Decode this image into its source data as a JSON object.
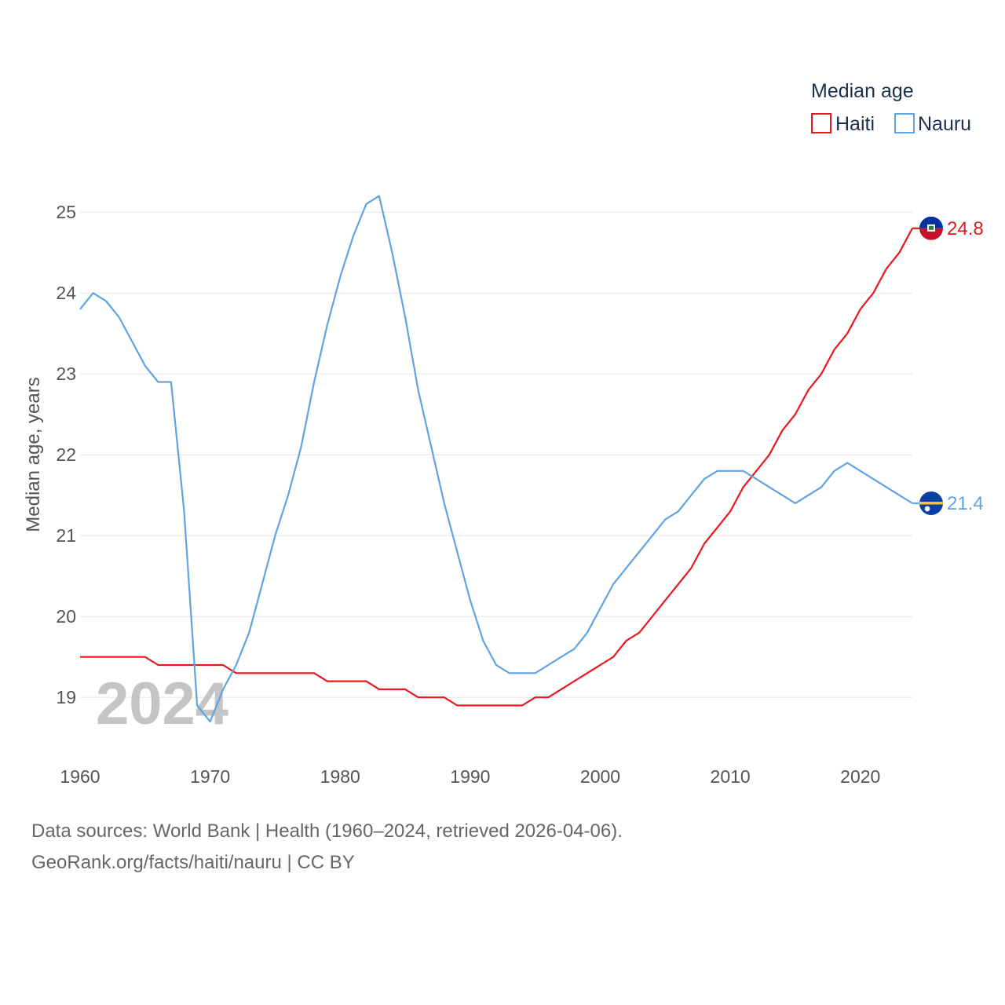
{
  "chart_data": {
    "type": "line",
    "legend_title": "Median age",
    "ylabel": "Median age, years",
    "xlabel": "",
    "watermark_year": "2024",
    "ylim": [
      18.4,
      25.4
    ],
    "xlim": [
      1960,
      2024
    ],
    "yticks": [
      19,
      20,
      21,
      22,
      23,
      24,
      25
    ],
    "xticks": [
      1960,
      1970,
      1980,
      1990,
      2000,
      2010,
      2020
    ],
    "x": [
      1960,
      1961,
      1962,
      1963,
      1964,
      1965,
      1966,
      1967,
      1968,
      1969,
      1970,
      1971,
      1972,
      1973,
      1974,
      1975,
      1976,
      1977,
      1978,
      1979,
      1980,
      1981,
      1982,
      1983,
      1984,
      1985,
      1986,
      1987,
      1988,
      1989,
      1990,
      1991,
      1992,
      1993,
      1994,
      1995,
      1996,
      1997,
      1998,
      1999,
      2000,
      2001,
      2002,
      2003,
      2004,
      2005,
      2006,
      2007,
      2008,
      2009,
      2010,
      2011,
      2012,
      2013,
      2014,
      2015,
      2016,
      2017,
      2018,
      2019,
      2020,
      2021,
      2022,
      2023,
      2024
    ],
    "series": [
      {
        "name": "Haiti",
        "color": "#e8181e",
        "flag": "haiti-flag",
        "end_label": "24.8",
        "values": [
          19.5,
          19.5,
          19.5,
          19.5,
          19.5,
          19.5,
          19.4,
          19.4,
          19.4,
          19.4,
          19.4,
          19.4,
          19.3,
          19.3,
          19.3,
          19.3,
          19.3,
          19.3,
          19.3,
          19.2,
          19.2,
          19.2,
          19.2,
          19.1,
          19.1,
          19.1,
          19.0,
          19.0,
          19.0,
          18.9,
          18.9,
          18.9,
          18.9,
          18.9,
          18.9,
          19.0,
          19.0,
          19.1,
          19.2,
          19.3,
          19.4,
          19.5,
          19.7,
          19.8,
          20.0,
          20.2,
          20.4,
          20.6,
          20.9,
          21.1,
          21.3,
          21.6,
          21.8,
          22.0,
          22.3,
          22.5,
          22.8,
          23.0,
          23.3,
          23.5,
          23.8,
          24.0,
          24.3,
          24.5,
          24.8
        ]
      },
      {
        "name": "Nauru",
        "color": "#5ea4e5",
        "flag": "nauru-flag",
        "end_label": "21.4",
        "values": [
          23.8,
          24.0,
          23.9,
          23.7,
          23.4,
          23.1,
          22.9,
          22.9,
          21.3,
          18.9,
          18.7,
          19.1,
          19.4,
          19.8,
          20.4,
          21.0,
          21.5,
          22.1,
          22.9,
          23.6,
          24.2,
          24.7,
          25.1,
          25.2,
          24.5,
          23.7,
          22.8,
          22.1,
          21.4,
          20.8,
          20.2,
          19.7,
          19.4,
          19.3,
          19.3,
          19.3,
          19.4,
          19.5,
          19.6,
          19.8,
          20.1,
          20.4,
          20.6,
          20.8,
          21.0,
          21.2,
          21.3,
          21.5,
          21.7,
          21.8,
          21.8,
          21.8,
          21.7,
          21.6,
          21.5,
          21.4,
          21.5,
          21.6,
          21.8,
          21.9,
          21.8,
          21.7,
          21.6,
          21.5,
          21.4
        ]
      }
    ]
  },
  "footer": {
    "sources": "Data sources: World Bank | Health (1960–2024, retrieved 2026-04-06).",
    "attribution": "GeoRank.org/facts/haiti/nauru | CC BY"
  }
}
